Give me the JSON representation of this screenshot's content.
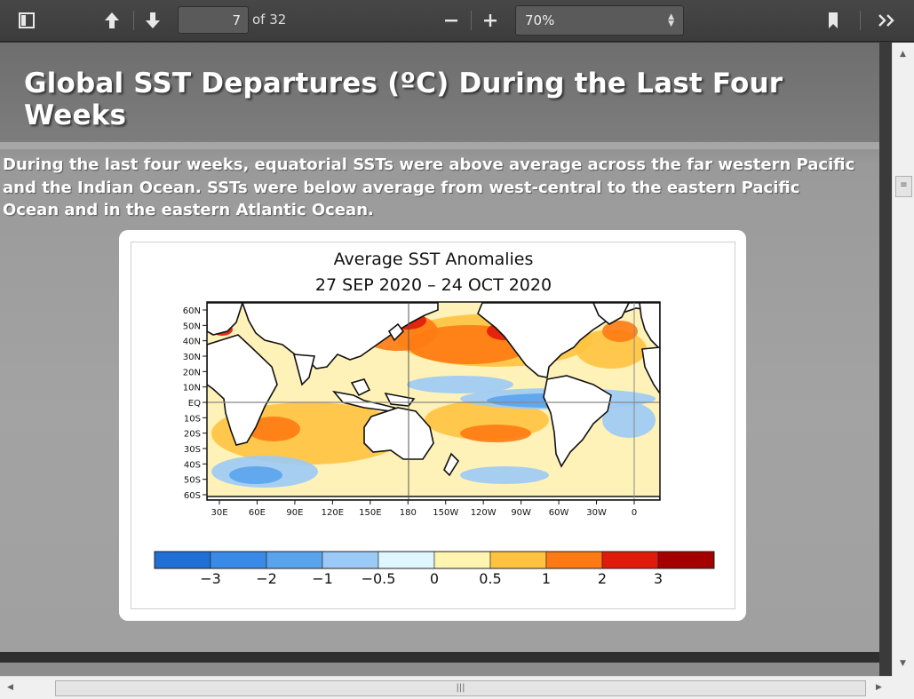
{
  "toolbar": {
    "page_number": "7",
    "page_of": "of 32",
    "zoom": "70%",
    "icons": [
      "sidebar-toggle-icon",
      "arrow-up-icon",
      "arrow-down-icon",
      "zoom-out-icon",
      "zoom-in-icon",
      "bookmark-icon",
      "double-chevron-right-icon"
    ]
  },
  "slide": {
    "title": "Global SST Departures (ºC) During the Last Four Weeks",
    "body": "During the last four weeks, equatorial SSTs were above average across the far western Pacific and the Indian Ocean. SSTs were below average from west-central to the eastern Pacific Ocean and in the eastern Atlantic Ocean."
  },
  "chart_data": {
    "type": "heatmap",
    "title_line1": "Average SST Anomalies",
    "title_line2": "27 SEP 2020 – 24 OCT 2020",
    "y_ticks": [
      "60N",
      "50N",
      "40N",
      "30N",
      "20N",
      "10N",
      "EQ",
      "10S",
      "20S",
      "30S",
      "40S",
      "50S",
      "60S"
    ],
    "x_ticks": [
      "30E",
      "60E",
      "90E",
      "120E",
      "150E",
      "180",
      "150W",
      "120W",
      "90W",
      "60W",
      "30W",
      "0"
    ],
    "colorbar": {
      "colors": [
        "#1f6fd6",
        "#3a8ae8",
        "#5aa4ee",
        "#9ccaf6",
        "#dff6ff",
        "#fff5b0",
        "#ffc340",
        "#ff7a14",
        "#e01b0c",
        "#a50000"
      ],
      "labels": [
        "−3",
        "−2",
        "−1",
        "−0.5",
        "0",
        "0.5",
        "1",
        "2",
        "3"
      ]
    }
  }
}
